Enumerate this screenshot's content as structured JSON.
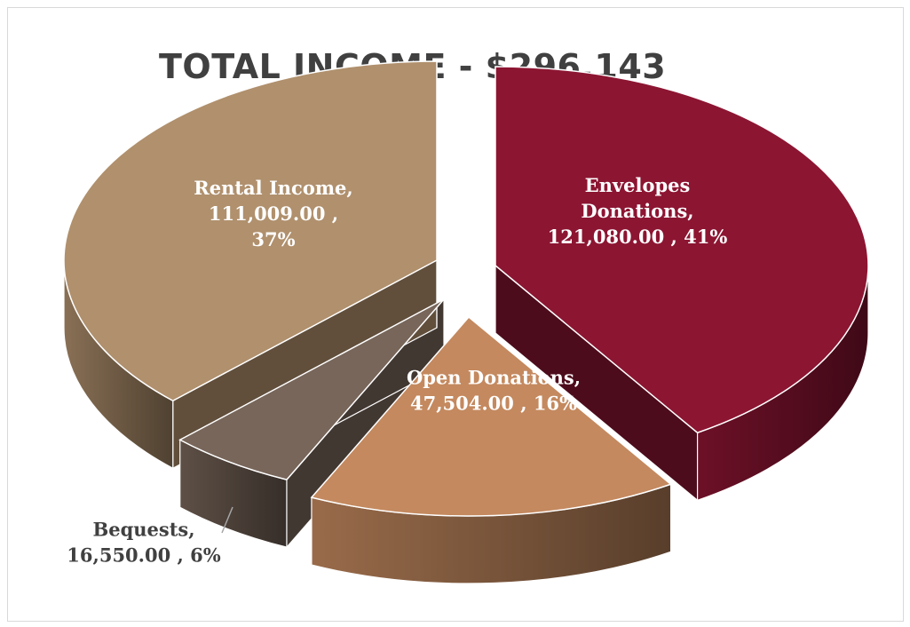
{
  "chart_data": {
    "type": "pie",
    "title": "TOTAL INCOME - $296,143",
    "slices": [
      {
        "name": "Envelopes Donations",
        "value": 121080.0,
        "percent": 41,
        "label_lines": [
          "Envelopes",
          "Donations,",
          "121,080.00 , 41%"
        ],
        "color": "#8c1532"
      },
      {
        "name": "Open Donations",
        "value": 47504.0,
        "percent": 16,
        "label_lines": [
          "Open Donations,",
          "47,504.00 , 16%"
        ],
        "color": "#c4895f"
      },
      {
        "name": "Bequests",
        "value": 16550.0,
        "percent": 6,
        "label_lines": [
          "Bequests,",
          "16,550.00 , 6%"
        ],
        "color": "#78665a"
      },
      {
        "name": "Rental Income",
        "value": 111009.0,
        "percent": 37,
        "label_lines": [
          "Rental Income,",
          "111,009.00 ,",
          "37%"
        ],
        "color": "#b0906d"
      }
    ],
    "style": "3d-exploded-pie",
    "legend": "none"
  }
}
